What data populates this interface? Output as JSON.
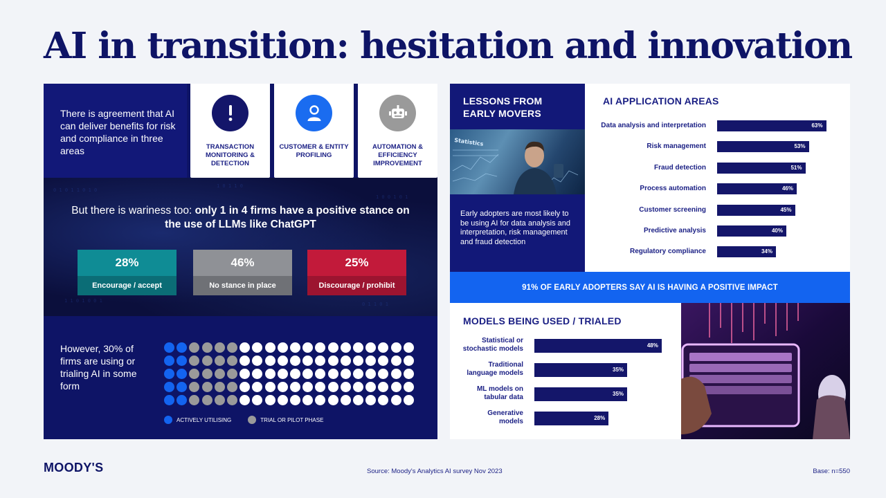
{
  "title": "AI in transition: hesitation and innovation",
  "agreement": {
    "text": "There is agreement that AI can deliver benefits for risk and compliance in three areas",
    "cards": [
      {
        "label": "TRANSACTION MONITORING & DETECTION",
        "icon": "exclamation-icon",
        "color": "#14166a"
      },
      {
        "label": "CUSTOMER & ENTITY PROFILING",
        "icon": "person-icon",
        "color": "#1a6cf0"
      },
      {
        "label": "AUTOMATION & EFFICIENCY IMPROVEMENT",
        "icon": "robot-icon",
        "color": "#9a9a9a"
      }
    ]
  },
  "wariness": {
    "text_plain": "But there is wariness too: ",
    "text_bold": "only 1 in 4 firms have a positive stance on the use of LLMs like ChatGPT",
    "stats": [
      {
        "value": "28%",
        "label": "Encourage / accept",
        "top_color": "#0f8c95",
        "bottom_color": "#0b6d76"
      },
      {
        "value": "46%",
        "label": "No stance in place",
        "top_color": "#8f9196",
        "bottom_color": "#6f7176"
      },
      {
        "value": "25%",
        "label": "Discourage / prohibit",
        "top_color": "#c21a3a",
        "bottom_color": "#9c1430"
      }
    ]
  },
  "usage": {
    "text": "However, 30% of firms are using or trialing AI in some form",
    "active_count": 10,
    "trial_count": 20,
    "total": 100,
    "active_color": "#1364f0",
    "trial_color": "#9a9a9a",
    "rest_color": "#ffffff",
    "legend": {
      "active": "ACTIVELY UTILISING",
      "trial": "TRIAL OR PILOT PHASE"
    }
  },
  "lessons": {
    "title_line1": "LESSONS FROM",
    "title_line2": "EARLY MOVERS",
    "image_overlay": "Statistics",
    "text": "Early adopters are most likely to be using AI for data analysis and interpretation, risk management and fraud detection"
  },
  "banner": "91% OF EARLY ADOPTERS SAY AI IS HAVING A POSITIVE IMPACT",
  "chart_data": [
    {
      "type": "bar",
      "title": "AI APPLICATION AREAS",
      "orientation": "horizontal",
      "categories": [
        "Data analysis and interpretation",
        "Risk management",
        "Fraud detection",
        "Process automation",
        "Customer screening",
        "Predictive analysis",
        "Regulatory compliance"
      ],
      "values": [
        63,
        53,
        51,
        46,
        45,
        40,
        34
      ],
      "value_labels": [
        "63%",
        "53%",
        "51%",
        "46%",
        "45%",
        "40%",
        "34%"
      ],
      "xlim": [
        0,
        100
      ],
      "grid": false
    },
    {
      "type": "bar",
      "title": "MODELS BEING USED / TRIALED",
      "orientation": "horizontal",
      "categories": [
        [
          "Statistical or",
          "stochastic models"
        ],
        [
          "Traditional",
          "language models"
        ],
        [
          "ML models on",
          "tabular data"
        ],
        [
          "Generative",
          "models"
        ]
      ],
      "values": [
        48,
        35,
        35,
        28
      ],
      "value_labels": [
        "48%",
        "35%",
        "35%",
        "28%"
      ],
      "xlim": [
        0,
        100
      ],
      "grid": false
    }
  ],
  "footer": {
    "logo": "MOODY'S",
    "source": "Source: Moody's Analytics AI survey Nov 2023",
    "base": "Base: n=550"
  }
}
